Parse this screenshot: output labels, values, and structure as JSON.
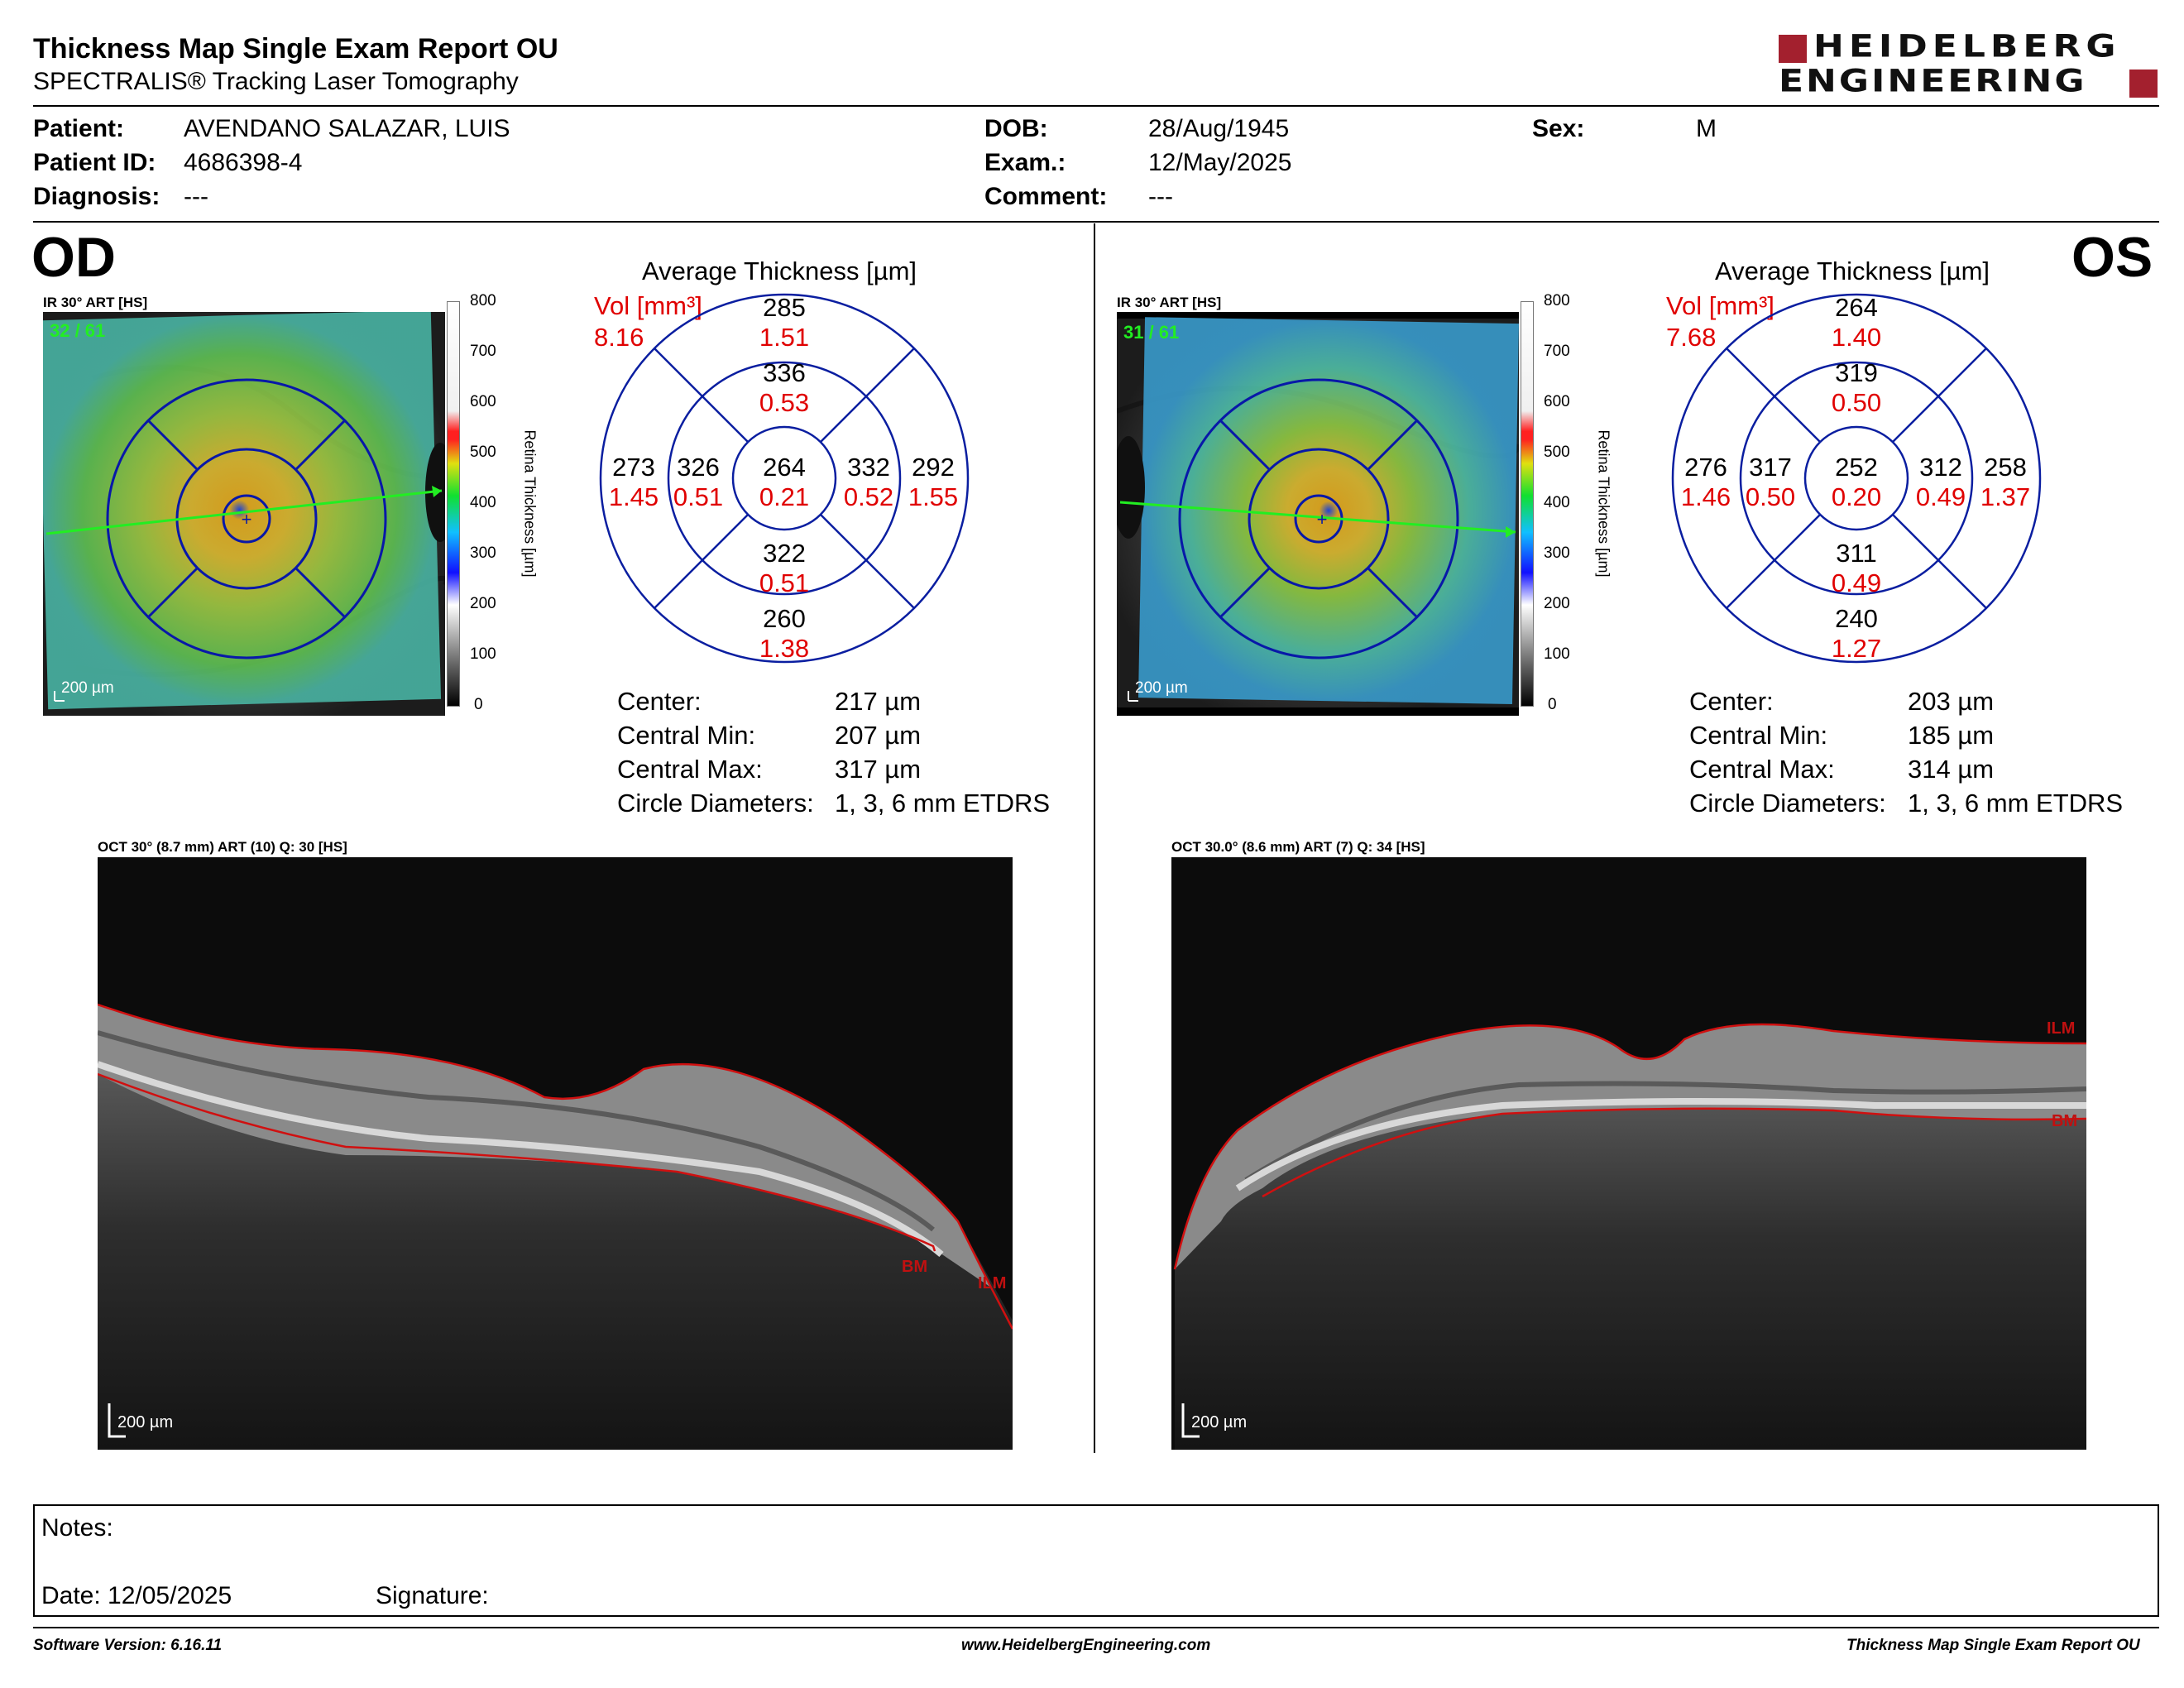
{
  "header": {
    "title": "Thickness Map Single Exam Report OU",
    "subtitle": "SPECTRALIS® Tracking Laser Tomography",
    "logo_line1": "HEIDELBERG",
    "logo_line2": "ENGINEERING"
  },
  "patient": {
    "patient_label": "Patient:",
    "patient_value": "AVENDANO SALAZAR, LUIS",
    "id_label": "Patient ID:",
    "id_value": "4686398-4",
    "diagnosis_label": "Diagnosis:",
    "diagnosis_value": "---",
    "dob_label": "DOB:",
    "dob_value": "28/Aug/1945",
    "exam_label": "Exam.:",
    "exam_value": "12/May/2025",
    "comment_label": "Comment:",
    "comment_value": "---",
    "sex_label": "Sex:",
    "sex_value": "M"
  },
  "od": {
    "eye": "OD",
    "ir_label": "IR 30° ART [HS]",
    "frames": "32 / 61",
    "scale": "200 µm",
    "avg_title": "Average Thickness [µm]",
    "vol_label": "Vol [mm³]",
    "vol_value": "8.16",
    "sectors": {
      "outer_sup": {
        "t": "285",
        "v": "1.51"
      },
      "inner_sup": {
        "t": "336",
        "v": "0.53"
      },
      "outer_temp": {
        "t": "273",
        "v": "1.45"
      },
      "inner_temp": {
        "t": "326",
        "v": "0.51"
      },
      "center": {
        "t": "264",
        "v": "0.21"
      },
      "inner_nasal": {
        "t": "332",
        "v": "0.52"
      },
      "outer_nasal": {
        "t": "292",
        "v": "1.55"
      },
      "inner_inf": {
        "t": "322",
        "v": "0.51"
      },
      "outer_inf": {
        "t": "260",
        "v": "1.38"
      }
    },
    "stats": [
      {
        "label": "Center:",
        "value": "217 µm"
      },
      {
        "label": "Central Min:",
        "value": "207 µm"
      },
      {
        "label": "Central Max:",
        "value": "317 µm"
      },
      {
        "label": "Circle Diameters:",
        "value": "1, 3, 6 mm ETDRS"
      }
    ],
    "oct_label": "OCT 30° (8.7 mm) ART (10) Q: 30 [HS]",
    "oct_scale": "200 µm",
    "ilm": "ILM",
    "bm": "BM"
  },
  "os": {
    "eye": "OS",
    "ir_label": "IR 30° ART [HS]",
    "frames": "31 / 61",
    "scale": "200 µm",
    "avg_title": "Average Thickness [µm]",
    "vol_label": "Vol [mm³]",
    "vol_value": "7.68",
    "sectors": {
      "outer_sup": {
        "t": "264",
        "v": "1.40"
      },
      "inner_sup": {
        "t": "319",
        "v": "0.50"
      },
      "outer_temp": {
        "t": "276",
        "v": "1.46"
      },
      "inner_temp": {
        "t": "317",
        "v": "0.50"
      },
      "center": {
        "t": "252",
        "v": "0.20"
      },
      "inner_nasal": {
        "t": "312",
        "v": "0.49"
      },
      "outer_nasal": {
        "t": "258",
        "v": "1.37"
      },
      "inner_inf": {
        "t": "311",
        "v": "0.49"
      },
      "outer_inf": {
        "t": "240",
        "v": "1.27"
      }
    },
    "stats": [
      {
        "label": "Center:",
        "value": "203 µm"
      },
      {
        "label": "Central Min:",
        "value": "185 µm"
      },
      {
        "label": "Central Max:",
        "value": "314 µm"
      },
      {
        "label": "Circle Diameters:",
        "value": "1, 3, 6 mm ETDRS"
      }
    ],
    "oct_label": "OCT 30.0° (8.6 mm) ART (7) Q: 34 [HS]",
    "oct_scale": "200 µm",
    "ilm": "ILM",
    "bm": "BM"
  },
  "colorbar": {
    "ticks": [
      "800",
      "700",
      "600",
      "500",
      "400",
      "300",
      "200",
      "100",
      "0"
    ],
    "label": "Retina Thickness [µm]"
  },
  "notes": {
    "notes_label": "Notes:",
    "date_label": "Date: 12/05/2025",
    "signature_label": "Signature:"
  },
  "footer": {
    "software": "Software Version: 6.16.11",
    "website": "www.HeidelbergEngineering.com",
    "report": "Thickness Map Single Exam Report OU"
  },
  "colors": {
    "brand_red": "#a3202e",
    "circle_blue": "#0a1ea0",
    "value_red": "#e00000",
    "trace_red": "#d01010",
    "frame_green": "#22ee22"
  }
}
